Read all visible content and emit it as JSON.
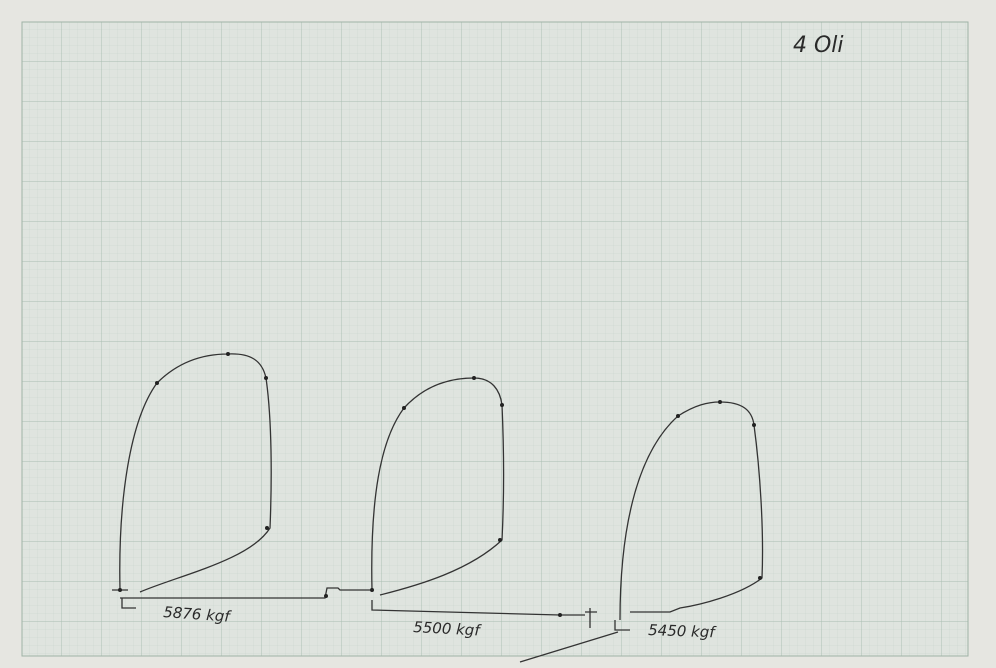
{
  "header": {
    "note": "4 Oli"
  },
  "loops": [
    {
      "label": "5876 kgf"
    },
    {
      "label": "5500 kgf"
    },
    {
      "label": "5450 kgf"
    }
  ]
}
